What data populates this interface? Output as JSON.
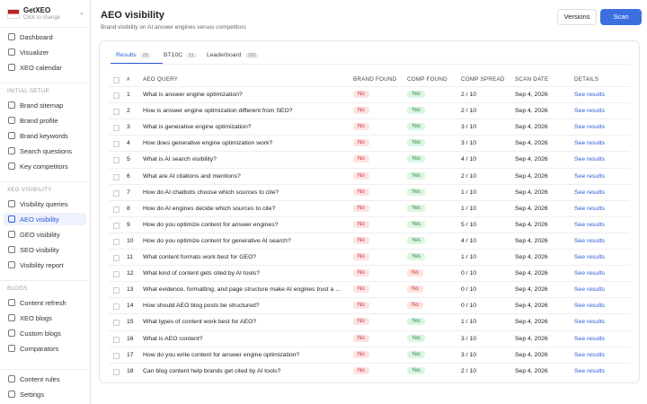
{
  "sidebar": {
    "brand": "GetXEO",
    "brand_hint": "Click to change",
    "groups": [
      {
        "title": null,
        "items": [
          "Dashboard",
          "Visualizer",
          "XEO calendar"
        ]
      },
      {
        "title": "INITIAL SETUP",
        "items": [
          "Brand sitemap",
          "Brand profile",
          "Brand keywords",
          "Search questions",
          "Key competitors"
        ]
      },
      {
        "title": "XEO VISIBILITY",
        "items": [
          "Visibility queries",
          "AEO visibility",
          "GEO visibility",
          "SEO visibility",
          "Visibility report"
        ]
      },
      {
        "title": "BLOGS",
        "items": [
          "Content refresh",
          "XEO blogs",
          "Custom blogs",
          "Comparators"
        ]
      }
    ],
    "active": "AEO visibility",
    "footer": [
      "Content rules",
      "Settings"
    ]
  },
  "header": {
    "title": "AEO visibility",
    "subtitle": "Brand visibility on AI answer engines versus competitors",
    "buttons": [
      "Versions",
      "Scan"
    ]
  },
  "tabs": [
    {
      "label": "Results",
      "count": 25
    },
    {
      "label": "BT10C",
      "count": 11
    },
    {
      "label": "Leaderboard",
      "count": 155
    }
  ],
  "table": {
    "columns": [
      "#",
      "AEO QUERY",
      "BRAND FOUND",
      "COMP FOUND",
      "COMP SPREAD",
      "SCAN DATE",
      "DETAILS"
    ],
    "rows": [
      [
        1,
        "What is answer engine optimization?",
        "No",
        "Yes",
        "2 / 10",
        "Sep 4, 2026",
        "See results"
      ],
      [
        2,
        "How is answer engine optimization different from SEO?",
        "No",
        "Yes",
        "2 / 10",
        "Sep 4, 2026",
        "See results"
      ],
      [
        3,
        "What is generative engine optimization?",
        "No",
        "Yes",
        "3 / 10",
        "Sep 4, 2026",
        "See results"
      ],
      [
        4,
        "How does generative engine optimization work?",
        "No",
        "Yes",
        "3 / 10",
        "Sep 4, 2026",
        "See results"
      ],
      [
        5,
        "What is AI search visibility?",
        "No",
        "Yes",
        "4 / 10",
        "Sep 4, 2026",
        "See results"
      ],
      [
        6,
        "What are AI citations and mentions?",
        "No",
        "Yes",
        "2 / 10",
        "Sep 4, 2026",
        "See results"
      ],
      [
        7,
        "How do AI chatbots choose which sources to cite?",
        "No",
        "Yes",
        "1 / 10",
        "Sep 4, 2026",
        "See results"
      ],
      [
        8,
        "How do AI engines decide which sources to cite?",
        "No",
        "Yes",
        "1 / 10",
        "Sep 4, 2026",
        "See results"
      ],
      [
        9,
        "How do you optimize content for answer engines?",
        "No",
        "Yes",
        "5 / 10",
        "Sep 4, 2026",
        "See results"
      ],
      [
        10,
        "How do you optimize content for generative AI search?",
        "No",
        "Yes",
        "4 / 10",
        "Sep 4, 2026",
        "See results"
      ],
      [
        11,
        "What content formats work best for GEO?",
        "No",
        "Yes",
        "1 / 10",
        "Sep 4, 2026",
        "See results"
      ],
      [
        12,
        "What kind of content gets cited by AI tools?",
        "No",
        "No",
        "0 / 10",
        "Sep 4, 2026",
        "See results"
      ],
      [
        13,
        "What evidence, formatting, and page structure make AI engines trust a ...",
        "No",
        "No",
        "0 / 10",
        "Sep 4, 2026",
        "See results"
      ],
      [
        14,
        "How should AEO blog posts be structured?",
        "No",
        "No",
        "0 / 10",
        "Sep 4, 2026",
        "See results"
      ],
      [
        15,
        "What types of content work best for AEO?",
        "No",
        "Yes",
        "1 / 10",
        "Sep 4, 2026",
        "See results"
      ],
      [
        16,
        "What is AEO content?",
        "No",
        "Yes",
        "3 / 10",
        "Sep 4, 2026",
        "See results"
      ],
      [
        17,
        "How do you write content for answer engine optimization?",
        "No",
        "Yes",
        "3 / 10",
        "Sep 4, 2026",
        "See results"
      ],
      [
        18,
        "Can blog content help brands get cited by AI tools?",
        "No",
        "Yes",
        "2 / 10",
        "Sep 4, 2026",
        "See results"
      ]
    ]
  }
}
